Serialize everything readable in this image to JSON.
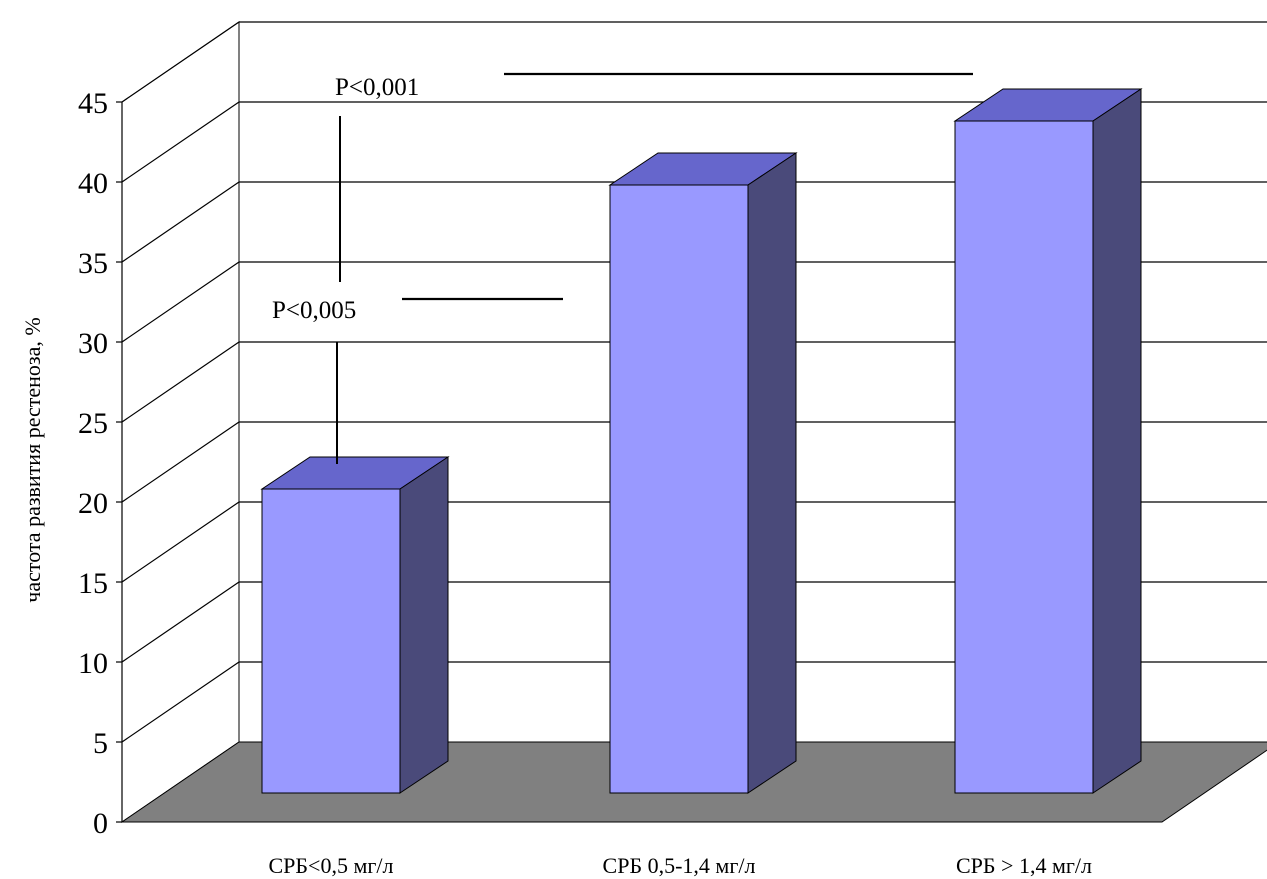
{
  "chart_data": {
    "type": "bar",
    "categories": [
      "СРБ<0,5 мг/л",
      "СРБ 0,5-1,4 мг/л",
      "СРБ > 1,4 мг/л"
    ],
    "values": [
      19,
      38,
      42
    ],
    "ylabel": "частота развития рестеноза, %",
    "ylim": [
      0,
      45
    ],
    "yticks": [
      0,
      5,
      10,
      15,
      20,
      25,
      30,
      35,
      40,
      45
    ],
    "grid": true,
    "annotations": [
      {
        "text": "P<0,001",
        "between": [
          "СРБ<0,5 мг/л",
          "СРБ > 1,4 мг/л"
        ]
      },
      {
        "text": "P<0,005",
        "between": [
          "СРБ<0,5 мг/л",
          "СРБ 0,5-1,4 мг/л"
        ]
      }
    ],
    "colors": {
      "bar_front": "#9999ff",
      "bar_top": "#6666cc",
      "bar_side": "#4a4a7a",
      "floor": "#808080",
      "wall": "#ffffff",
      "grid": "#000000"
    }
  }
}
